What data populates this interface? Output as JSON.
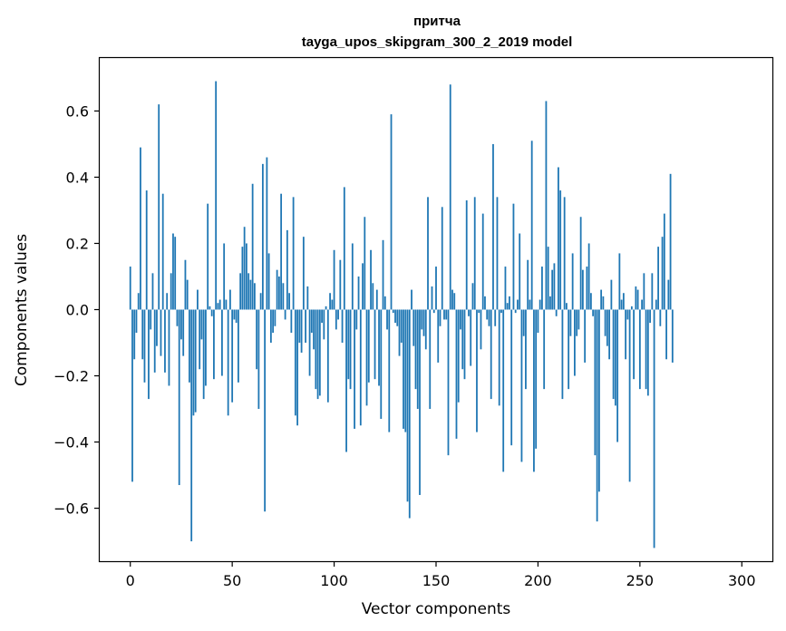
{
  "chart_data": {
    "type": "bar",
    "title": "притча",
    "subtitle": "tayga_upos_skipgram_300_2_2019 model",
    "xlabel": "Vector components",
    "ylabel": "Components values",
    "xlim": [
      -15,
      315
    ],
    "ylim": [
      -0.76,
      0.76
    ],
    "xticks": [
      0,
      50,
      100,
      150,
      200,
      250,
      300
    ],
    "xtick_labels": [
      "0",
      "50",
      "100",
      "150",
      "200",
      "250",
      "300"
    ],
    "yticks": [
      -0.6,
      -0.4,
      -0.2,
      0.0,
      0.2,
      0.4,
      0.6
    ],
    "ytick_labels": [
      "−0.6",
      "−0.4",
      "−0.2",
      "0.0",
      "0.2",
      "0.4",
      "0.6"
    ],
    "bar_color": "#1f77b4",
    "grid": false,
    "values": [
      0.13,
      -0.52,
      -0.15,
      -0.07,
      0.05,
      0.49,
      -0.15,
      -0.22,
      0.36,
      -0.27,
      -0.06,
      0.11,
      -0.19,
      -0.11,
      0.62,
      -0.14,
      0.35,
      -0.19,
      0.05,
      -0.23,
      0.11,
      0.23,
      0.22,
      -0.05,
      -0.53,
      -0.09,
      -0.14,
      0.15,
      0.09,
      -0.22,
      -0.7,
      -0.32,
      -0.31,
      0.06,
      -0.18,
      -0.09,
      -0.27,
      -0.23,
      0.32,
      0.01,
      -0.02,
      -0.21,
      0.69,
      0.02,
      0.03,
      -0.2,
      0.2,
      0.03,
      -0.32,
      0.06,
      -0.28,
      -0.03,
      -0.04,
      -0.22,
      0.11,
      0.19,
      0.25,
      0.2,
      0.11,
      0.09,
      0.38,
      0.08,
      -0.18,
      -0.3,
      0.05,
      0.44,
      -0.61,
      0.46,
      0.17,
      -0.1,
      -0.07,
      -0.05,
      0.12,
      0.1,
      0.35,
      0.08,
      -0.03,
      0.24,
      0.05,
      -0.07,
      0.34,
      -0.32,
      -0.35,
      -0.1,
      -0.13,
      0.22,
      -0.1,
      0.07,
      -0.2,
      -0.07,
      -0.12,
      -0.24,
      -0.27,
      -0.26,
      -0.04,
      -0.09,
      0.01,
      -0.28,
      0.05,
      0.03,
      0.18,
      -0.06,
      -0.03,
      0.15,
      -0.1,
      0.37,
      -0.43,
      -0.21,
      -0.24,
      0.2,
      -0.36,
      -0.06,
      0.1,
      -0.35,
      0.14,
      0.28,
      -0.29,
      -0.22,
      0.18,
      0.08,
      -0.21,
      0.06,
      -0.23,
      -0.33,
      0.21,
      0.04,
      -0.06,
      -0.37,
      0.59,
      -0.01,
      -0.04,
      -0.05,
      -0.14,
      -0.1,
      -0.36,
      -0.37,
      -0.58,
      -0.63,
      0.06,
      -0.11,
      -0.24,
      -0.3,
      -0.56,
      -0.06,
      -0.08,
      -0.12,
      0.34,
      -0.3,
      0.07,
      -0.01,
      0.13,
      -0.16,
      -0.05,
      0.31,
      -0.03,
      -0.03,
      -0.44,
      0.68,
      0.06,
      0.05,
      -0.39,
      -0.28,
      -0.06,
      -0.18,
      -0.21,
      0.33,
      -0.02,
      -0.17,
      0.08,
      0.34,
      -0.37,
      -0.01,
      -0.12,
      0.29,
      0.04,
      -0.03,
      -0.05,
      -0.27,
      0.5,
      -0.05,
      0.34,
      -0.29,
      -0.01,
      -0.49,
      0.13,
      0.02,
      0.04,
      -0.41,
      0.32,
      -0.01,
      0.03,
      0.23,
      -0.46,
      -0.08,
      -0.24,
      0.15,
      0.03,
      0.51,
      -0.49,
      -0.42,
      -0.07,
      0.03,
      0.13,
      -0.24,
      0.63,
      0.19,
      0.04,
      0.12,
      0.14,
      -0.02,
      0.43,
      0.36,
      -0.27,
      0.34,
      0.02,
      -0.24,
      -0.08,
      0.17,
      -0.2,
      -0.08,
      -0.06,
      0.28,
      0.12,
      -0.16,
      0.13,
      0.2,
      0.05,
      -0.02,
      -0.44,
      -0.64,
      -0.55,
      0.06,
      0.04,
      -0.08,
      -0.11,
      -0.15,
      0.09,
      -0.27,
      -0.29,
      -0.4,
      0.17,
      0.03,
      0.05,
      -0.15,
      -0.03,
      -0.52,
      0.01,
      -0.21,
      0.07,
      0.06,
      -0.24,
      0.03,
      0.11,
      -0.24,
      -0.26,
      -0.04,
      0.11,
      -0.72,
      0.03,
      0.19,
      -0.05,
      0.22,
      0.29,
      -0.15,
      0.09,
      0.41,
      -0.16
    ]
  }
}
